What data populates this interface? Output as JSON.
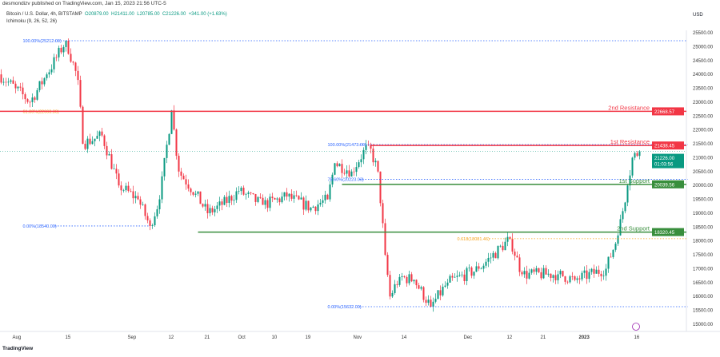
{
  "header": {
    "publisher": "desmondizv published on TradingView.com, Jan 15, 2023 21:56 UTC-5"
  },
  "legend": {
    "symbol": "Bitcoin / U.S. Dollar, 4h, BITSTAMP",
    "open": "O20879.00",
    "high": "H21411.00",
    "low": "L20785.00",
    "close": "C21226.00",
    "change": "+341.00 (+1.63%)",
    "indicator": "Ichimoku (9, 26, 52, 26)"
  },
  "brand": "TradingView",
  "colors": {
    "up": "#089981",
    "down": "#f23645",
    "resistance": "#f23645",
    "support": "#388e3c",
    "fib": "#2962ff",
    "fib_mid": "#f7a21b"
  },
  "chart_data": {
    "type": "candlestick",
    "currency": "USD",
    "ylim": [
      14900,
      25800
    ],
    "y_ticks": [
      15000,
      15500,
      16000,
      16500,
      17000,
      17500,
      18000,
      18500,
      19000,
      19500,
      20000,
      20500,
      21000,
      21500,
      22000,
      22500,
      23000,
      23500,
      24000,
      24500,
      25000,
      25500
    ],
    "x_ticks": [
      {
        "label": "Aug",
        "bar": 6
      },
      {
        "label": "15",
        "bar": 28
      },
      {
        "label": "Sep",
        "bar": 54
      },
      {
        "label": "12",
        "bar": 71
      },
      {
        "label": "21",
        "bar": 86
      },
      {
        "label": "Oct",
        "bar": 100
      },
      {
        "label": "10",
        "bar": 114
      },
      {
        "label": "19",
        "bar": 128
      },
      {
        "label": "Nov",
        "bar": 148
      },
      {
        "label": "14",
        "bar": 168
      },
      {
        "label": "Dec",
        "bar": 194
      },
      {
        "label": "12",
        "bar": 212
      },
      {
        "label": "21",
        "bar": 226
      },
      {
        "label": "2023",
        "bar": 242
      },
      {
        "label": "16",
        "bar": 265
      }
    ],
    "price_path": [
      [
        0,
        24000
      ],
      [
        7,
        23500
      ],
      [
        13,
        23000
      ],
      [
        20,
        24000
      ],
      [
        28,
        25212
      ],
      [
        33,
        23800
      ],
      [
        35,
        21500
      ],
      [
        43,
        21800
      ],
      [
        50,
        20000
      ],
      [
        58,
        19500
      ],
      [
        63,
        18540
      ],
      [
        67,
        19500
      ],
      [
        72,
        22700
      ],
      [
        75,
        20500
      ],
      [
        82,
        19700
      ],
      [
        87,
        19000
      ],
      [
        93,
        19300
      ],
      [
        100,
        19800
      ],
      [
        110,
        19300
      ],
      [
        120,
        19600
      ],
      [
        130,
        19200
      ],
      [
        137,
        19500
      ],
      [
        140,
        20800
      ],
      [
        147,
        20500
      ],
      [
        154,
        21473
      ],
      [
        158,
        20500
      ],
      [
        161,
        17500
      ],
      [
        163,
        16000
      ],
      [
        167,
        16700
      ],
      [
        173,
        16600
      ],
      [
        180,
        15632
      ],
      [
        187,
        16500
      ],
      [
        200,
        17000
      ],
      [
        213,
        18081
      ],
      [
        218,
        16800
      ],
      [
        233,
        16800
      ],
      [
        240,
        16600
      ],
      [
        253,
        17000
      ],
      [
        258,
        18200
      ],
      [
        262,
        20000
      ],
      [
        264,
        21000
      ],
      [
        267,
        21226
      ]
    ],
    "levels": [
      {
        "label": "2nd Resistance",
        "price": 22668.57,
        "price_label": "22668.57",
        "kind": "resistance"
      },
      {
        "label": "1st Resistance",
        "price": 21438.45,
        "price_label": "21438.45",
        "kind": "resistance"
      },
      {
        "label": "1st Support",
        "price": 20039.56,
        "price_label": "20039.56",
        "kind": "support"
      },
      {
        "label": "2nd Support",
        "price": 18320.45,
        "price_label": "18320.45",
        "kind": "support"
      }
    ],
    "fib_labels": [
      {
        "text": "100.00%(25212.00)",
        "price": 25212,
        "bar": 9,
        "to": 286,
        "color": "#2962ff"
      },
      {
        "text": "61.80%(22663.30)",
        "price": 22668,
        "bar": 9,
        "to": 0,
        "color": "#f7a21b"
      },
      {
        "text": "0.00%(18540.00)",
        "price": 18540,
        "bar": 9,
        "to": 62,
        "color": "#2962ff"
      },
      {
        "text": "100.00%(21473.00)",
        "price": 21473,
        "bar": 136,
        "to": 286,
        "color": "#2962ff"
      },
      {
        "text": "78.60%(20223.03)",
        "price": 20223,
        "bar": 136,
        "to": 286,
        "color": "#2962ff"
      },
      {
        "text": "0.618(18081.46)",
        "price": 18081,
        "bar": 190,
        "to": 286,
        "color": "#f7a21b"
      },
      {
        "text": "0.00%(15632.00)",
        "price": 15632,
        "bar": 136,
        "to": 286,
        "color": "#2962ff"
      }
    ],
    "last_price": {
      "label": "21226.00",
      "countdown": "01:03:56"
    }
  }
}
